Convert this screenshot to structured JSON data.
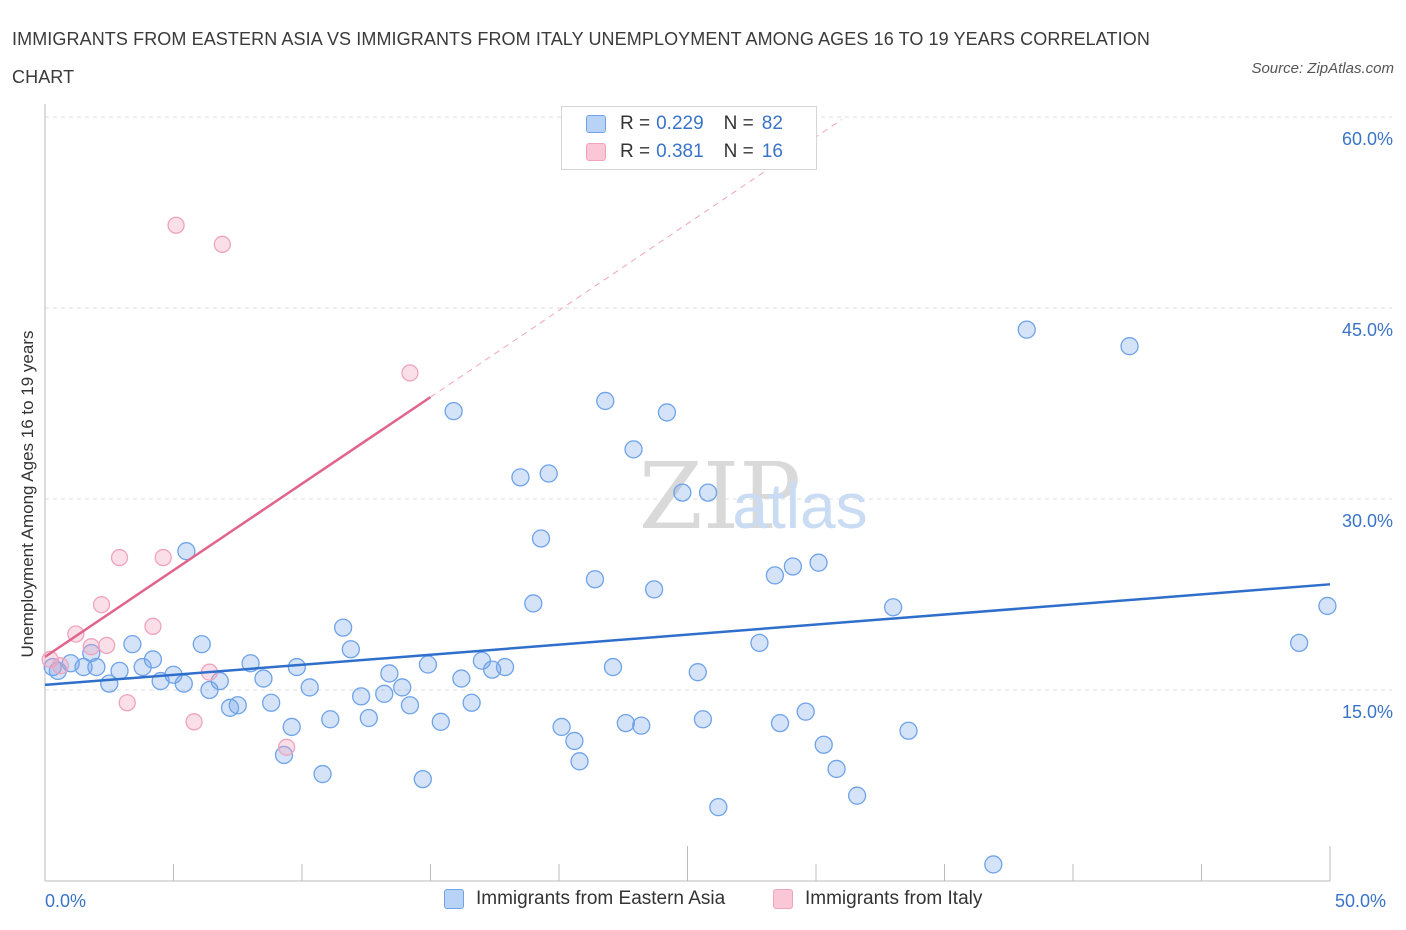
{
  "chart_data": {
    "type": "scatter",
    "title": "IMMIGRANTS FROM EASTERN ASIA VS IMMIGRANTS FROM ITALY UNEMPLOYMENT AMONG AGES 16 TO 19 YEARS CORRELATION CHART",
    "source": "Source: ZipAtlas.com",
    "xlabel": "",
    "ylabel": "Unemployment Among Ages 16 to 19 years",
    "xlim": [
      0,
      50
    ],
    "ylim": [
      0,
      60
    ],
    "x_tick_labels": [
      "0.0%",
      "50.0%"
    ],
    "y_tick_labels": [
      "15.0%",
      "30.0%",
      "45.0%",
      "60.0%"
    ],
    "y_gridlines": [
      15,
      30,
      45,
      60
    ],
    "colors": {
      "eastern_asia": "#6fa3e8",
      "eastern_asia_line": "#2f6fcb",
      "italy": "#f0a3bd",
      "italy_line": "#e0648c",
      "accent": "#3a74c8"
    },
    "legend": {
      "rows": [
        {
          "r_label": "R = ",
          "r_value": "0.229",
          "n_label": "N = ",
          "n_value": "82"
        },
        {
          "r_label": "R = ",
          "r_value": "0.381",
          "n_label": "N = ",
          "n_value": "16"
        }
      ]
    },
    "series": [
      {
        "name": "Immigrants from Eastern Asia",
        "trend": {
          "x": [
            0,
            50
          ],
          "y": [
            15.4,
            23.3
          ]
        },
        "points": [
          [
            0.3,
            16.8
          ],
          [
            0.5,
            16.5
          ],
          [
            1.0,
            17.1
          ],
          [
            1.5,
            16.8
          ],
          [
            1.8,
            17.9
          ],
          [
            2.5,
            15.5
          ],
          [
            2.9,
            16.5
          ],
          [
            3.4,
            18.6
          ],
          [
            3.8,
            16.8
          ],
          [
            4.2,
            17.4
          ],
          [
            4.5,
            15.7
          ],
          [
            5.0,
            16.2
          ],
          [
            5.4,
            15.5
          ],
          [
            5.5,
            25.9
          ],
          [
            6.1,
            18.6
          ],
          [
            6.4,
            15.0
          ],
          [
            6.8,
            15.7
          ],
          [
            7.2,
            13.6
          ],
          [
            7.5,
            13.8
          ],
          [
            8.0,
            17.1
          ],
          [
            8.5,
            15.9
          ],
          [
            8.8,
            14.0
          ],
          [
            9.3,
            9.9
          ],
          [
            9.6,
            12.1
          ],
          [
            9.8,
            16.8
          ],
          [
            10.3,
            15.2
          ],
          [
            10.8,
            8.4
          ],
          [
            11.1,
            12.7
          ],
          [
            11.6,
            19.9
          ],
          [
            11.9,
            18.2
          ],
          [
            12.3,
            14.5
          ],
          [
            12.6,
            12.8
          ],
          [
            13.2,
            14.7
          ],
          [
            13.4,
            16.3
          ],
          [
            13.9,
            15.2
          ],
          [
            14.2,
            13.8
          ],
          [
            14.7,
            8.0
          ],
          [
            14.9,
            17.0
          ],
          [
            15.4,
            12.5
          ],
          [
            15.9,
            36.9
          ],
          [
            16.2,
            15.9
          ],
          [
            16.6,
            14.0
          ],
          [
            17.0,
            17.3
          ],
          [
            17.4,
            16.6
          ],
          [
            17.9,
            16.8
          ],
          [
            18.5,
            31.7
          ],
          [
            19.0,
            21.8
          ],
          [
            19.3,
            26.9
          ],
          [
            19.6,
            32.0
          ],
          [
            20.1,
            12.1
          ],
          [
            20.6,
            11.0
          ],
          [
            20.8,
            9.4
          ],
          [
            21.4,
            23.7
          ],
          [
            21.8,
            37.7
          ],
          [
            22.1,
            16.8
          ],
          [
            22.6,
            12.4
          ],
          [
            22.9,
            33.9
          ],
          [
            23.2,
            12.2
          ],
          [
            23.7,
            22.9
          ],
          [
            24.2,
            36.8
          ],
          [
            24.8,
            30.5
          ],
          [
            25.4,
            16.4
          ],
          [
            25.6,
            12.7
          ],
          [
            25.8,
            30.5
          ],
          [
            26.2,
            5.8
          ],
          [
            27.8,
            18.7
          ],
          [
            28.4,
            24.0
          ],
          [
            28.6,
            12.4
          ],
          [
            29.1,
            24.7
          ],
          [
            29.6,
            13.3
          ],
          [
            30.1,
            25.0
          ],
          [
            30.3,
            10.7
          ],
          [
            30.8,
            8.8
          ],
          [
            31.6,
            6.7
          ],
          [
            33.0,
            21.5
          ],
          [
            33.6,
            11.8
          ],
          [
            36.9,
            1.3
          ],
          [
            38.2,
            43.3
          ],
          [
            42.2,
            42.0
          ],
          [
            48.8,
            18.7
          ],
          [
            49.9,
            21.6
          ],
          [
            2.0,
            16.8
          ]
        ]
      },
      {
        "name": "Immigrants from Italy",
        "trend": {
          "x": [
            0,
            15
          ],
          "y": [
            17.6,
            38.0
          ]
        },
        "trend_dashed": {
          "x": [
            15,
            31
          ],
          "y": [
            38.0,
            59.8
          ]
        },
        "points": [
          [
            0.2,
            17.4
          ],
          [
            0.6,
            16.9
          ],
          [
            1.2,
            19.4
          ],
          [
            1.8,
            18.4
          ],
          [
            2.2,
            21.7
          ],
          [
            2.4,
            18.5
          ],
          [
            2.9,
            25.4
          ],
          [
            3.2,
            14.0
          ],
          [
            4.2,
            20.0
          ],
          [
            4.6,
            25.4
          ],
          [
            5.1,
            51.5
          ],
          [
            5.8,
            12.5
          ],
          [
            6.4,
            16.4
          ],
          [
            6.9,
            50.0
          ],
          [
            9.4,
            10.5
          ],
          [
            14.2,
            39.9
          ]
        ]
      }
    ]
  },
  "bottom_legend": {
    "series_1": "Immigrants from Eastern Asia",
    "series_2": "Immigrants from Italy"
  }
}
